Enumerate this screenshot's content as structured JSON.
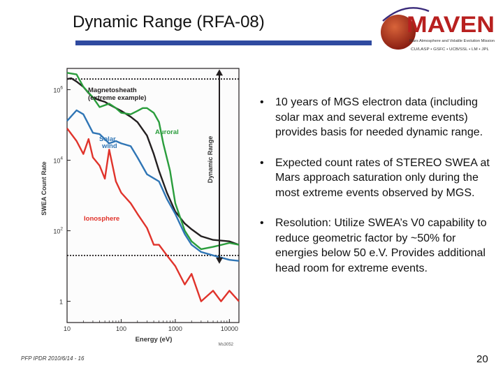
{
  "slide": {
    "title": "Dynamic Range (RFA-08)",
    "footer": "PFP IPDR 2010/6/14 - 16",
    "page_number": "20",
    "accent_color": "#2f4aa0"
  },
  "logo": {
    "wordmark": "MAVEN",
    "subtitle": "Mars Atmosphere and Volatile Evolution Mission",
    "partners": "CU/LASP • GSFC • UCB/SSL • LM • JPL"
  },
  "bullets": [
    "10 years of MGS electron data (including solar max and several extreme events) provides basis for needed dynamic range.",
    "Expected count rates of STEREO SWEA at Mars approach saturation only during the most extreme events observed by MGS.",
    "Resolution: Utilize SWEA’s V0 capability to reduce geometric factor by ~50% for energies below 50 e.V. Provides additional head room for extreme events."
  ],
  "chart_data": {
    "type": "line",
    "xlabel": "Energy (eV)",
    "ylabel": "SWEA Count Rate",
    "xscale": "log",
    "yscale": "log",
    "xlim": [
      10,
      15000
    ],
    "ylim": [
      0.25,
      4000000
    ],
    "xticks": [
      {
        "value": 10,
        "label": "10"
      },
      {
        "value": 100,
        "label": "100"
      },
      {
        "value": 1000,
        "label": "1000"
      },
      {
        "value": 10000,
        "label": "10000"
      }
    ],
    "yticks": [
      {
        "value": 1,
        "base": "1",
        "exp": ""
      },
      {
        "value": 100,
        "base": "10",
        "exp": "2"
      },
      {
        "value": 10000,
        "base": "10",
        "exp": "4"
      },
      {
        "value": 1000000,
        "base": "10",
        "exp": "6"
      }
    ],
    "annotation": "Dynamic Range",
    "dynamic_range": [
      20,
      2000000
    ],
    "figure_id": "Ms3052",
    "series": [
      {
        "name": "Magnetosheath (extreme example)",
        "color": "#231f20",
        "x": [
          10,
          12,
          15,
          20,
          25,
          30,
          40,
          50,
          60,
          80,
          100,
          150,
          200,
          300,
          400,
          500,
          700,
          1000,
          1500,
          2000,
          3000,
          5000,
          10000,
          15000
        ],
        "y": [
          2000000,
          2100000,
          1700000,
          1200000,
          800000,
          600000,
          500000,
          450000,
          380000,
          300000,
          250000,
          170000,
          120000,
          50000,
          15000,
          5000,
          1200,
          350,
          160,
          110,
          70,
          55,
          50,
          40
        ]
      },
      {
        "name": "Auroral",
        "color": "#2a9d3c",
        "x": [
          10,
          15,
          20,
          30,
          40,
          60,
          80,
          100,
          150,
          200,
          250,
          300,
          400,
          500,
          600,
          800,
          1000,
          1500,
          2000,
          3000,
          5000,
          10000,
          15000
        ],
        "y": [
          3000000,
          2700000,
          1200000,
          600000,
          320000,
          400000,
          300000,
          220000,
          200000,
          250000,
          300000,
          300000,
          220000,
          120000,
          30000,
          5000,
          600,
          100,
          50,
          30,
          35,
          45,
          40
        ]
      },
      {
        "name": "Solar wind",
        "color": "#2f75b5",
        "x": [
          10,
          15,
          20,
          30,
          40,
          60,
          80,
          100,
          150,
          200,
          300,
          500,
          700,
          1000,
          1500,
          2000,
          3000,
          5000,
          10000,
          15000
        ],
        "y": [
          130000,
          260000,
          200000,
          60000,
          55000,
          30000,
          35000,
          30000,
          25000,
          12000,
          4000,
          2500,
          800,
          300,
          80,
          40,
          25,
          20,
          15,
          14
        ]
      },
      {
        "name": "Ionosphere",
        "color": "#e0332b",
        "x": [
          10,
          15,
          20,
          25,
          30,
          40,
          50,
          60,
          80,
          100,
          150,
          200,
          300,
          400,
          500,
          700,
          1000,
          1500,
          2000,
          3000,
          5000,
          7000,
          10000,
          15000
        ],
        "y": [
          80000,
          35000,
          15000,
          40000,
          12000,
          7000,
          3000,
          20000,
          2500,
          1200,
          600,
          300,
          120,
          40,
          40,
          20,
          10,
          3,
          6,
          1,
          2,
          1,
          2,
          1
        ]
      }
    ],
    "labels": [
      {
        "text": "Magnetosheath",
        "color": "#231f20"
      },
      {
        "text": "(extreme example)",
        "color": "#231f20"
      },
      {
        "text": "Auroral",
        "color": "#2a9d3c"
      },
      {
        "text": "Solar",
        "color": "#2f75b5"
      },
      {
        "text": "wind",
        "color": "#2f75b5"
      },
      {
        "text": "Ionosphere",
        "color": "#e0332b"
      }
    ]
  }
}
